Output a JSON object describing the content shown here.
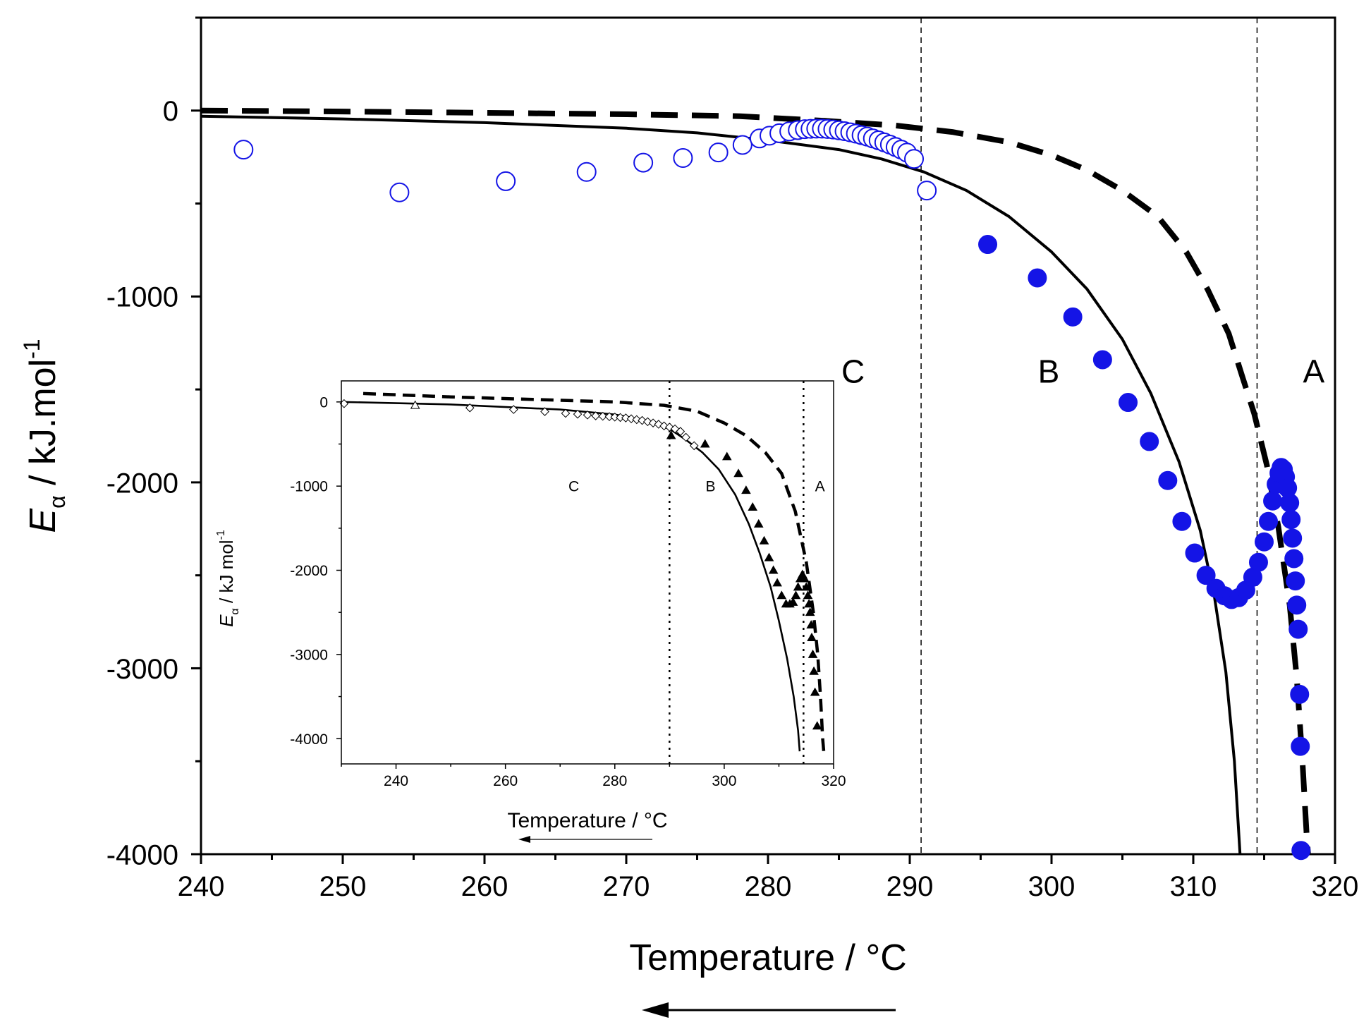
{
  "chart_data": [
    {
      "id": "main",
      "type": "scatter",
      "title": "",
      "xlabel": "Temperature / °C",
      "ylabel_main": "E",
      "ylabel_sub": "α",
      "ylabel_rest": " / kJ.mol",
      "ylabel_sup": "-1",
      "xlim": [
        240,
        320
      ],
      "ylim": [
        -4000,
        500
      ],
      "xticks": [
        240,
        250,
        260,
        270,
        280,
        290,
        300,
        310,
        320
      ],
      "yticks": [
        0,
        -1000,
        -2000,
        -3000,
        -4000
      ],
      "region_labels": [
        {
          "text": "C",
          "x": 286,
          "y": -1400
        },
        {
          "text": "B",
          "x": 299.8,
          "y": -1400
        },
        {
          "text": "A",
          "x": 318.5,
          "y": -1400
        }
      ],
      "vlines": [
        290.8,
        314.5
      ],
      "arrow": {
        "direction": "left"
      },
      "series": [
        {
          "name": "open circles (region C)",
          "marker": "open-circle",
          "color": "#1414e6",
          "points": [
            [
              243.0,
              -210
            ],
            [
              254.0,
              -440
            ],
            [
              261.5,
              -380
            ],
            [
              267.2,
              -330
            ],
            [
              271.2,
              -280
            ],
            [
              274.0,
              -255
            ],
            [
              276.5,
              -225
            ],
            [
              278.2,
              -185
            ],
            [
              279.4,
              -150
            ],
            [
              280.1,
              -135
            ],
            [
              280.8,
              -122
            ],
            [
              281.5,
              -112
            ],
            [
              282.1,
              -105
            ],
            [
              282.6,
              -100
            ],
            [
              283.0,
              -98
            ],
            [
              283.4,
              -97
            ],
            [
              283.8,
              -97
            ],
            [
              284.2,
              -99
            ],
            [
              284.6,
              -102
            ],
            [
              285.0,
              -106
            ],
            [
              285.4,
              -111
            ],
            [
              285.8,
              -117
            ],
            [
              286.2,
              -124
            ],
            [
              286.6,
              -132
            ],
            [
              287.0,
              -140
            ],
            [
              287.4,
              -150
            ],
            [
              287.8,
              -160
            ],
            [
              288.2,
              -171
            ],
            [
              288.6,
              -183
            ],
            [
              289.0,
              -196
            ],
            [
              289.4,
              -210
            ],
            [
              289.8,
              -226
            ],
            [
              290.3,
              -260
            ],
            [
              291.2,
              -430
            ]
          ]
        },
        {
          "name": "filled circles (regions B, A)",
          "marker": "filled-circle",
          "color": "#1414e6",
          "points": [
            [
              295.5,
              -720
            ],
            [
              299.0,
              -900
            ],
            [
              301.5,
              -1110
            ],
            [
              303.6,
              -1340
            ],
            [
              305.4,
              -1570
            ],
            [
              306.9,
              -1780
            ],
            [
              308.2,
              -1990
            ],
            [
              309.2,
              -2210
            ],
            [
              310.1,
              -2380
            ],
            [
              310.9,
              -2500
            ],
            [
              311.6,
              -2570
            ],
            [
              312.2,
              -2610
            ],
            [
              312.7,
              -2630
            ],
            [
              313.2,
              -2620
            ],
            [
              313.7,
              -2580
            ],
            [
              314.2,
              -2510
            ],
            [
              314.6,
              -2430
            ],
            [
              315.0,
              -2320
            ],
            [
              315.3,
              -2210
            ],
            [
              315.6,
              -2100
            ],
            [
              315.85,
              -2010
            ],
            [
              316.05,
              -1950
            ],
            [
              316.2,
              -1920
            ],
            [
              316.35,
              -1930
            ],
            [
              316.5,
              -1970
            ],
            [
              316.65,
              -2030
            ],
            [
              316.8,
              -2110
            ],
            [
              316.9,
              -2200
            ],
            [
              317.0,
              -2300
            ],
            [
              317.1,
              -2410
            ],
            [
              317.2,
              -2530
            ],
            [
              317.3,
              -2660
            ],
            [
              317.4,
              -2790
            ],
            [
              317.5,
              -3140
            ],
            [
              317.55,
              -3420
            ],
            [
              317.6,
              -3980
            ]
          ]
        },
        {
          "name": "solid model curve",
          "line": "solid",
          "color": "#000000",
          "points": [
            [
              240.0,
              -30
            ],
            [
              250.0,
              -45
            ],
            [
              260.0,
              -65
            ],
            [
              270.0,
              -95
            ],
            [
              275.0,
              -120
            ],
            [
              280.0,
              -160
            ],
            [
              285.0,
              -210
            ],
            [
              288.0,
              -260
            ],
            [
              291.0,
              -330
            ],
            [
              294.0,
              -430
            ],
            [
              297.0,
              -570
            ],
            [
              300.0,
              -760
            ],
            [
              302.5,
              -960
            ],
            [
              305.0,
              -1230
            ],
            [
              307.0,
              -1520
            ],
            [
              309.0,
              -1890
            ],
            [
              310.5,
              -2260
            ],
            [
              311.5,
              -2620
            ],
            [
              312.3,
              -3020
            ],
            [
              312.9,
              -3500
            ],
            [
              313.3,
              -4000
            ]
          ]
        },
        {
          "name": "dashed model curve",
          "line": "dashed",
          "color": "#000000",
          "points": [
            [
              240.0,
              0
            ],
            [
              250.0,
              -5
            ],
            [
              260.0,
              -12
            ],
            [
              270.0,
              -20
            ],
            [
              278.0,
              -30
            ],
            [
              284.0,
              -55
            ],
            [
              289.0,
              -80
            ],
            [
              293.0,
              -115
            ],
            [
              297.0,
              -170
            ],
            [
              300.0,
              -240
            ],
            [
              302.5,
              -320
            ],
            [
              305.0,
              -430
            ],
            [
              307.5,
              -570
            ],
            [
              309.5,
              -760
            ],
            [
              311.0,
              -960
            ],
            [
              312.5,
              -1200
            ],
            [
              313.5,
              -1440
            ],
            [
              314.3,
              -1630
            ],
            [
              315.2,
              -1910
            ],
            [
              316.0,
              -2240
            ],
            [
              316.8,
              -2660
            ],
            [
              317.3,
              -3050
            ],
            [
              317.7,
              -3500
            ],
            [
              318.0,
              -3900
            ],
            [
              318.1,
              -4000
            ]
          ]
        }
      ]
    },
    {
      "id": "inset",
      "type": "scatter",
      "title": "",
      "xlabel": "Temperature / °C",
      "ylabel_main": "E",
      "ylabel_sub": "α",
      "ylabel_rest": " / kJ mol",
      "ylabel_sup": "-1",
      "xlim": [
        230,
        320
      ],
      "ylim": [
        -4300,
        250
      ],
      "xticks": [
        240,
        260,
        280,
        300,
        320
      ],
      "yticks": [
        0,
        -1000,
        -2000,
        -3000,
        -4000
      ],
      "region_labels": [
        {
          "text": "C",
          "x": 272.5,
          "y": -1000
        },
        {
          "text": "B",
          "x": 297.5,
          "y": -1000
        },
        {
          "text": "A",
          "x": 317.5,
          "y": -1000
        }
      ],
      "vlines": [
        290,
        314.5
      ],
      "arrow": {
        "direction": "left"
      },
      "series": [
        {
          "name": "open diamonds",
          "marker": "open-diamond",
          "color": "#000000",
          "points": [
            [
              230.5,
              -20
            ],
            [
              253.5,
              -70
            ],
            [
              261.5,
              -90
            ],
            [
              267.2,
              -115
            ],
            [
              271.0,
              -135
            ],
            [
              273.2,
              -145
            ],
            [
              275.0,
              -155
            ],
            [
              276.5,
              -165
            ],
            [
              277.8,
              -170
            ],
            [
              279.0,
              -175
            ],
            [
              280.0,
              -180
            ],
            [
              281.0,
              -185
            ],
            [
              282.0,
              -190
            ],
            [
              283.0,
              -200
            ],
            [
              284.0,
              -210
            ],
            [
              285.0,
              -220
            ],
            [
              286.0,
              -235
            ],
            [
              287.0,
              -250
            ],
            [
              288.0,
              -265
            ],
            [
              289.0,
              -285
            ],
            [
              290.0,
              -300
            ],
            [
              291.0,
              -320
            ],
            [
              292.0,
              -350
            ],
            [
              293.0,
              -420
            ],
            [
              294.5,
              -520
            ]
          ]
        },
        {
          "name": "open triangle",
          "marker": "open-triangle",
          "color": "#000000",
          "points": [
            [
              243.5,
              -40
            ]
          ]
        },
        {
          "name": "filled triangles",
          "marker": "filled-triangle",
          "color": "#000000",
          "points": [
            [
              290.3,
              -400
            ],
            [
              296.5,
              -500
            ],
            [
              300.5,
              -650
            ],
            [
              302.6,
              -850
            ],
            [
              304.0,
              -1050
            ],
            [
              305.2,
              -1250
            ],
            [
              306.3,
              -1450
            ],
            [
              307.3,
              -1650
            ],
            [
              308.2,
              -1850
            ],
            [
              309.0,
              -2000
            ],
            [
              309.7,
              -2150
            ],
            [
              310.5,
              -2300
            ],
            [
              311.3,
              -2400
            ],
            [
              312.0,
              -2400
            ],
            [
              312.6,
              -2380
            ],
            [
              313.1,
              -2300
            ],
            [
              313.5,
              -2200
            ],
            [
              313.9,
              -2100
            ],
            [
              314.3,
              -2050
            ],
            [
              314.7,
              -2100
            ],
            [
              315.0,
              -2200
            ],
            [
              315.3,
              -2300
            ],
            [
              315.5,
              -2400
            ],
            [
              315.7,
              -2500
            ],
            [
              315.9,
              -2650
            ],
            [
              316.0,
              -2800
            ],
            [
              316.2,
              -3000
            ],
            [
              316.4,
              -3200
            ],
            [
              316.6,
              -3450
            ],
            [
              317.0,
              -3850
            ]
          ]
        },
        {
          "name": "solid model curve",
          "line": "solid",
          "color": "#000000",
          "points": [
            [
              230.0,
              0
            ],
            [
              250.0,
              -30
            ],
            [
              270.0,
              -90
            ],
            [
              280.0,
              -150
            ],
            [
              286.0,
              -220
            ],
            [
              290.0,
              -320
            ],
            [
              293.0,
              -450
            ],
            [
              296.0,
              -600
            ],
            [
              299.0,
              -800
            ],
            [
              302.0,
              -1100
            ],
            [
              304.5,
              -1450
            ],
            [
              306.5,
              -1800
            ],
            [
              308.5,
              -2200
            ],
            [
              310.0,
              -2600
            ],
            [
              311.5,
              -3050
            ],
            [
              312.7,
              -3500
            ],
            [
              313.5,
              -3900
            ],
            [
              313.8,
              -4150
            ]
          ]
        },
        {
          "name": "dashed model curve",
          "line": "dashed",
          "color": "#000000",
          "points": [
            [
              234.0,
              100
            ],
            [
              250.0,
              60
            ],
            [
              265.0,
              30
            ],
            [
              280.0,
              0
            ],
            [
              289.0,
              -40
            ],
            [
              295.0,
              -110
            ],
            [
              300.0,
              -250
            ],
            [
              304.0,
              -400
            ],
            [
              307.5,
              -600
            ],
            [
              310.5,
              -850
            ],
            [
              313.0,
              -1300
            ],
            [
              315.0,
              -1900
            ],
            [
              316.3,
              -2500
            ],
            [
              317.1,
              -3000
            ],
            [
              317.6,
              -3500
            ],
            [
              318.0,
              -4000
            ],
            [
              318.2,
              -4150
            ]
          ]
        }
      ]
    }
  ]
}
